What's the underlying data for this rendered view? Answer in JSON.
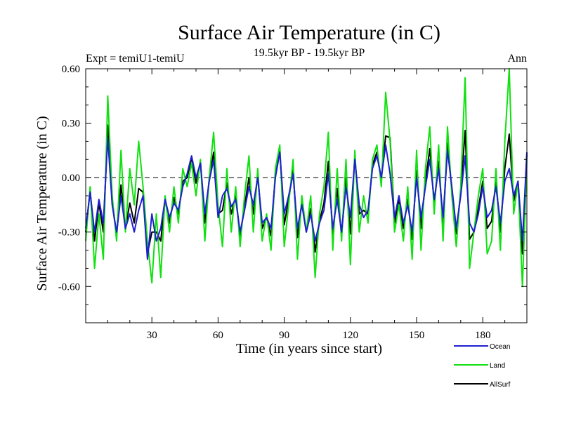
{
  "chart_data": {
    "type": "line",
    "title": "Surface Air Temperature (in C)",
    "subtitle": "19.5kyr BP - 19.5kyr BP",
    "left_label": "Expt = temiU1-temiU",
    "right_label": "Ann",
    "xlabel": "Time (in years since start)",
    "ylabel": "Surface Air Temperature (in C)",
    "xlim": [
      0,
      200
    ],
    "ylim": [
      -0.8,
      0.6
    ],
    "x_ticks": [
      30,
      60,
      90,
      120,
      150,
      180
    ],
    "x_tick_labels": [
      "30",
      "60",
      "90",
      "120",
      "150",
      "180"
    ],
    "y_ticks": [
      0.6,
      0.3,
      0.0,
      -0.3,
      -0.6
    ],
    "y_tick_labels": [
      "0.60",
      "0.30",
      "0.00",
      "-0.30",
      "-0.60"
    ],
    "zero_line": true,
    "series": [
      {
        "name": "Ocean",
        "color": "#1f1fd0",
        "x": [
          0,
          2,
          4,
          6,
          8,
          10,
          12,
          14,
          16,
          18,
          20,
          22,
          24,
          26,
          28,
          30,
          32,
          34,
          36,
          38,
          40,
          42,
          44,
          46,
          48,
          50,
          52,
          54,
          56,
          58,
          60,
          62,
          64,
          66,
          68,
          70,
          72,
          74,
          76,
          78,
          80,
          82,
          84,
          86,
          88,
          90,
          92,
          94,
          96,
          98,
          100,
          102,
          104,
          106,
          108,
          110,
          112,
          114,
          116,
          118,
          120,
          122,
          124,
          126,
          128,
          130,
          132,
          134,
          136,
          138,
          140,
          142,
          144,
          146,
          148,
          150,
          152,
          154,
          156,
          158,
          160,
          162,
          164,
          166,
          168,
          170,
          172,
          174,
          176,
          178,
          180,
          182,
          184,
          186,
          188,
          190,
          192,
          194,
          196,
          198,
          200
        ],
        "y": [
          -0.28,
          -0.08,
          -0.3,
          -0.12,
          -0.25,
          0.22,
          -0.15,
          -0.3,
          -0.1,
          -0.28,
          -0.2,
          -0.3,
          -0.18,
          -0.1,
          -0.45,
          -0.2,
          -0.35,
          -0.28,
          -0.12,
          -0.22,
          -0.14,
          -0.18,
          -0.05,
          0.02,
          0.12,
          0.0,
          0.08,
          -0.2,
          -0.02,
          0.1,
          -0.22,
          -0.1,
          -0.06,
          -0.16,
          -0.12,
          -0.3,
          -0.18,
          -0.05,
          -0.15,
          0.0,
          -0.25,
          -0.22,
          -0.28,
          0.0,
          0.14,
          -0.2,
          -0.1,
          0.02,
          -0.28,
          -0.15,
          -0.3,
          -0.2,
          -0.35,
          -0.25,
          -0.18,
          0.02,
          -0.28,
          -0.12,
          -0.3,
          -0.05,
          -0.22,
          0.1,
          -0.15,
          -0.22,
          -0.18,
          0.05,
          0.12,
          0.0,
          0.18,
          0.02,
          -0.22,
          -0.1,
          -0.25,
          -0.15,
          -0.3,
          0.0,
          -0.22,
          -0.05,
          0.1,
          -0.12,
          0.05,
          -0.22,
          0.15,
          -0.05,
          -0.28,
          -0.1,
          0.12,
          -0.25,
          -0.3,
          -0.2,
          -0.05,
          -0.22,
          -0.18,
          -0.05,
          -0.25,
          -0.02,
          0.05,
          -0.1,
          -0.02,
          -0.35,
          0.14
        ]
      },
      {
        "name": "Land",
        "color": "#11e011",
        "x": [
          0,
          2,
          4,
          6,
          8,
          10,
          12,
          14,
          16,
          18,
          20,
          22,
          24,
          26,
          28,
          30,
          32,
          34,
          36,
          38,
          40,
          42,
          44,
          46,
          48,
          50,
          52,
          54,
          56,
          58,
          60,
          62,
          64,
          66,
          68,
          70,
          72,
          74,
          76,
          78,
          80,
          82,
          84,
          86,
          88,
          90,
          92,
          94,
          96,
          98,
          100,
          102,
          104,
          106,
          108,
          110,
          112,
          114,
          116,
          118,
          120,
          122,
          124,
          126,
          128,
          130,
          132,
          134,
          136,
          138,
          140,
          142,
          144,
          146,
          148,
          150,
          152,
          154,
          156,
          158,
          160,
          162,
          164,
          166,
          168,
          170,
          172,
          174,
          176,
          178,
          180,
          182,
          184,
          186,
          188,
          190,
          192,
          194,
          196,
          198,
          200
        ],
        "y": [
          -0.35,
          -0.05,
          -0.5,
          -0.2,
          -0.45,
          0.45,
          -0.1,
          -0.35,
          0.15,
          -0.3,
          0.05,
          -0.15,
          0.2,
          -0.05,
          -0.35,
          -0.58,
          -0.2,
          -0.55,
          -0.1,
          -0.3,
          -0.05,
          -0.25,
          0.05,
          -0.05,
          0.08,
          -0.1,
          0.1,
          -0.35,
          0.0,
          0.25,
          -0.15,
          -0.38,
          0.05,
          -0.3,
          -0.05,
          -0.38,
          -0.1,
          0.12,
          -0.3,
          0.05,
          -0.35,
          -0.2,
          -0.4,
          0.05,
          0.18,
          -0.38,
          -0.15,
          0.1,
          -0.45,
          -0.1,
          -0.3,
          -0.1,
          -0.55,
          -0.2,
          -0.05,
          0.25,
          -0.4,
          0.05,
          -0.35,
          0.1,
          -0.48,
          0.15,
          -0.3,
          -0.1,
          -0.25,
          0.1,
          0.18,
          -0.05,
          0.47,
          0.2,
          -0.3,
          -0.15,
          -0.35,
          -0.05,
          -0.45,
          0.15,
          -0.4,
          0.05,
          0.28,
          -0.2,
          0.18,
          -0.35,
          0.28,
          -0.1,
          -0.38,
          -0.05,
          0.55,
          -0.5,
          -0.3,
          -0.1,
          0.05,
          -0.42,
          -0.35,
          0.05,
          -0.4,
          0.2,
          0.6,
          -0.2,
          -0.02,
          -0.6,
          0.1
        ]
      },
      {
        "name": "AllSurf",
        "color": "#000000",
        "x": [
          0,
          2,
          4,
          6,
          8,
          10,
          12,
          14,
          16,
          18,
          20,
          22,
          24,
          26,
          28,
          30,
          32,
          34,
          36,
          38,
          40,
          42,
          44,
          46,
          48,
          50,
          52,
          54,
          56,
          58,
          60,
          62,
          64,
          66,
          68,
          70,
          72,
          74,
          76,
          78,
          80,
          82,
          84,
          86,
          88,
          90,
          92,
          94,
          96,
          98,
          100,
          102,
          104,
          106,
          108,
          110,
          112,
          114,
          116,
          118,
          120,
          122,
          124,
          126,
          128,
          130,
          132,
          134,
          136,
          138,
          140,
          142,
          144,
          146,
          148,
          150,
          152,
          154,
          156,
          158,
          160,
          162,
          164,
          166,
          168,
          170,
          172,
          174,
          176,
          178,
          180,
          182,
          184,
          186,
          188,
          190,
          192,
          194,
          196,
          198,
          200
        ],
        "y": [
          -0.3,
          -0.07,
          -0.35,
          -0.14,
          -0.3,
          0.29,
          -0.14,
          -0.32,
          -0.04,
          -0.28,
          -0.14,
          -0.25,
          -0.06,
          -0.08,
          -0.42,
          -0.3,
          -0.3,
          -0.35,
          -0.12,
          -0.25,
          -0.11,
          -0.2,
          -0.02,
          0.0,
          0.11,
          -0.03,
          0.09,
          -0.25,
          -0.01,
          0.14,
          -0.2,
          -0.18,
          -0.03,
          -0.2,
          -0.1,
          -0.32,
          -0.16,
          0.0,
          -0.2,
          0.02,
          -0.28,
          -0.22,
          -0.32,
          0.02,
          0.15,
          -0.26,
          -0.12,
          0.04,
          -0.33,
          -0.13,
          -0.3,
          -0.17,
          -0.41,
          -0.24,
          -0.14,
          0.09,
          -0.32,
          -0.06,
          -0.32,
          0.0,
          -0.31,
          0.12,
          -0.2,
          -0.18,
          -0.2,
          0.07,
          0.14,
          -0.01,
          0.23,
          0.22,
          -0.25,
          -0.12,
          -0.28,
          -0.12,
          -0.34,
          0.04,
          -0.28,
          -0.02,
          0.16,
          -0.15,
          0.09,
          -0.26,
          0.19,
          -0.07,
          -0.31,
          -0.08,
          0.26,
          -0.34,
          -0.3,
          -0.17,
          -0.02,
          -0.28,
          -0.24,
          -0.02,
          -0.3,
          0.05,
          0.24,
          -0.13,
          -0.02,
          -0.42,
          0.13
        ]
      }
    ],
    "legend_position": "below-right"
  }
}
